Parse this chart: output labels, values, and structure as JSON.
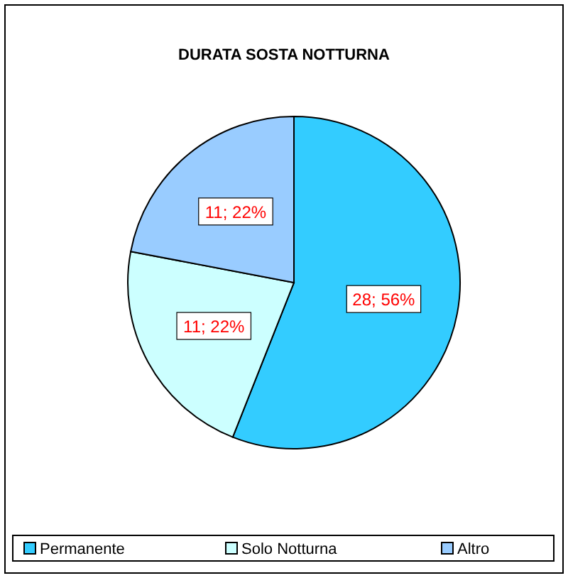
{
  "chart_data": {
    "type": "pie",
    "title": "DURATA SOSTA NOTTURNA",
    "categories": [
      "Permanente",
      "Solo Notturna",
      "Altro"
    ],
    "values": [
      28,
      11,
      11
    ],
    "colors": [
      "#33ccff",
      "#ccffff",
      "#99ccff"
    ],
    "value_labels": [
      "28; 56%",
      "11; 22%",
      "11; 22%"
    ],
    "legend": "bottom"
  }
}
